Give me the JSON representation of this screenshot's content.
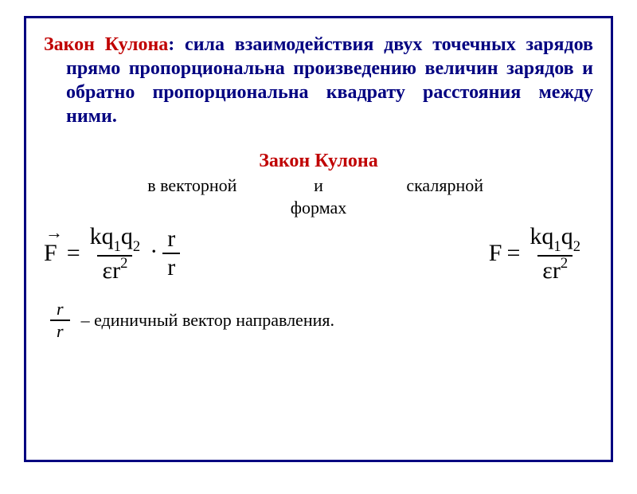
{
  "colors": {
    "border": "#000080",
    "title_red": "#c00000",
    "text_blue": "#000080",
    "text_black": "#000000",
    "background": "#ffffff"
  },
  "typography": {
    "family": "Times New Roman",
    "definition_fontsize_pt": 18,
    "formula_fontsize_pt": 22,
    "body_fontsize_pt": 16
  },
  "definition": {
    "title": "Закон Кулона",
    "colon_sep": ": ",
    "body": "сила взаимодействия двух точечных зарядов прямо пропорциональна произведению величин зарядов и обратно пропорциональна квадрату расстояния между ними."
  },
  "law_heading": "Закон Кулона",
  "forms": {
    "left": "в векторной",
    "mid": "и",
    "right": "скалярной",
    "below": "формах"
  },
  "formula_vector": {
    "F": "F",
    "eq": "=",
    "num1": "kq",
    "sub1": "1",
    "q2": "q",
    "sub2": "2",
    "den_eps": "ε",
    "den_r": "r",
    "den_exp": "2",
    "dot": "·",
    "frac2_num": "r",
    "frac2_den": "r"
  },
  "formula_scalar": {
    "F": "F",
    "eq": "=",
    "num1": "kq",
    "sub1": "1",
    "q2": "q",
    "sub2": "2",
    "den_eps": "ε",
    "den_r": "r",
    "den_exp": "2"
  },
  "footnote": {
    "symbol_top": "r",
    "symbol_bot": "r",
    "text": "– единичный вектор направления."
  }
}
